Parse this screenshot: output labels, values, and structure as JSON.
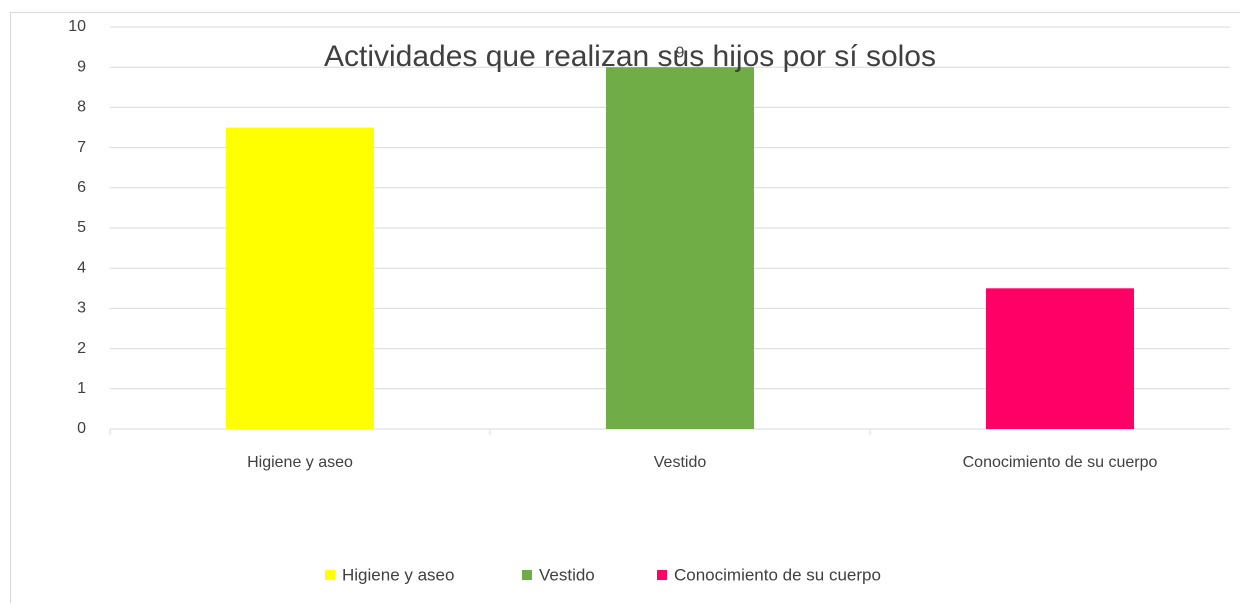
{
  "chart_data": {
    "type": "bar",
    "title": "Actividades que realizan sus hijos por sí solos",
    "categories": [
      "Higiene y aseo",
      "Vestido",
      "Conocimiento de su cuerpo"
    ],
    "values": [
      7.5,
      9,
      3.5
    ],
    "value_labels": [
      null,
      "9",
      null
    ],
    "colors": [
      "#ffff00",
      "#70ad47",
      "#ff0066"
    ],
    "ylim": [
      0,
      10
    ],
    "yticks": [
      0,
      1,
      2,
      3,
      4,
      5,
      6,
      7,
      8,
      9,
      10
    ],
    "grid": true,
    "legend": "bottom"
  }
}
